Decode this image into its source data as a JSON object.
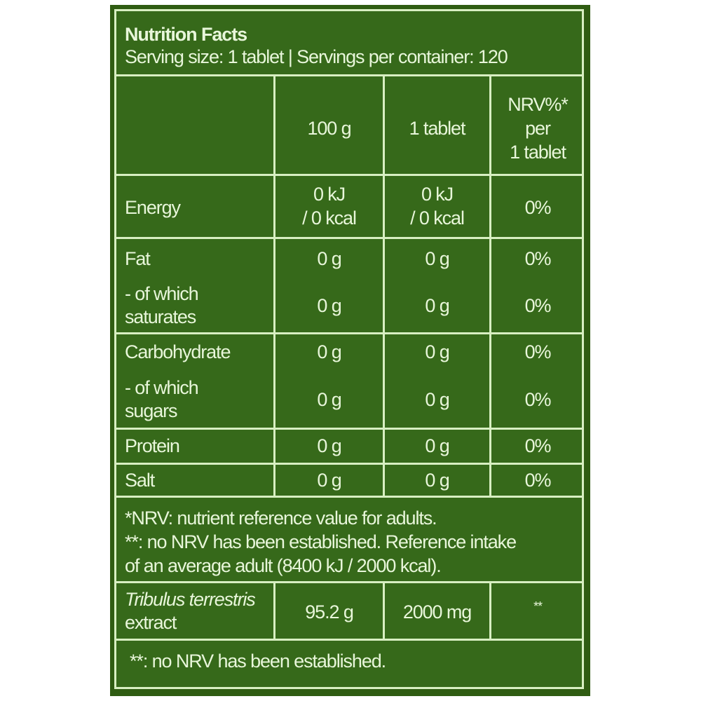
{
  "header": {
    "title": "Nutrition Facts",
    "serving": "Serving size: 1 tablet | Servings per container: 120"
  },
  "columns": {
    "per100": "100 g",
    "per_tablet": "1 tablet",
    "nrv_line1": "NRV%*",
    "nrv_line2": "per",
    "nrv_line3": "1 tablet"
  },
  "rows": [
    {
      "label": "Energy",
      "per100_1": "0 kJ",
      "per100_2": "/ 0 kcal",
      "tab_1": "0 kJ",
      "tab_2": "/ 0 kcal",
      "nrv": "0%"
    },
    {
      "label": "Fat",
      "per100": "0 g",
      "tab": "0 g",
      "nrv": "0%"
    },
    {
      "label1": "- of which",
      "label2": "saturates",
      "per100": "0 g",
      "tab": "0 g",
      "nrv": "0%"
    },
    {
      "label": "Carbohydrate",
      "per100": "0 g",
      "tab": "0 g",
      "nrv": "0%"
    },
    {
      "label1": "- of which",
      "label2": "sugars",
      "per100": "0 g",
      "tab": "0 g",
      "nrv": "0%"
    },
    {
      "label": "Protein",
      "per100": "0 g",
      "tab": "0 g",
      "nrv": "0%"
    },
    {
      "label": "Salt",
      "per100": "0 g",
      "tab": "0 g",
      "nrv": "0%"
    }
  ],
  "footnote": {
    "line1": "*NRV: nutrient reference value for adults.",
    "line2": "**: no NRV has been established. Reference intake",
    "line3": "of an average adult (8400 kJ / 2000 kcal)."
  },
  "extract": {
    "label1": "Tribulus terrestris",
    "label2": "extract",
    "per100": "95.2 g",
    "tab": "2000 mg",
    "nrv": "**"
  },
  "final_note": "**: no NRV has been established.",
  "colors": {
    "background": "#36691a",
    "lines": "#d8efc2",
    "text": "#e8f6da"
  }
}
